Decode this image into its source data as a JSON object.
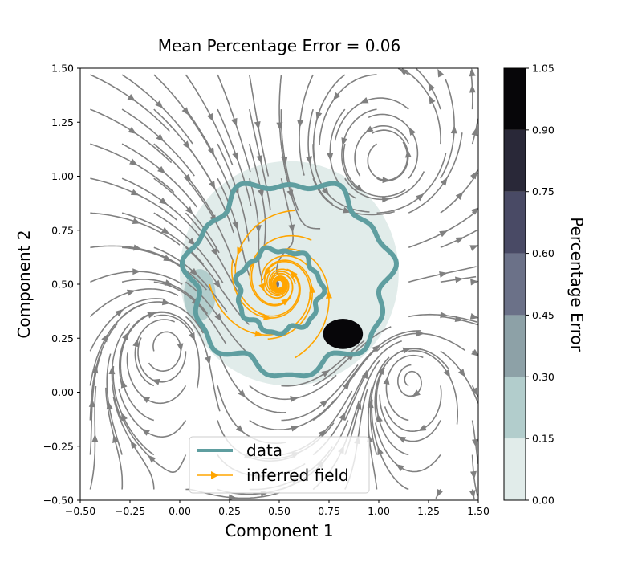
{
  "chart_data": {
    "type": "heatmap",
    "title": "Mean Percentage Error = 0.06",
    "xlabel": "Component 1",
    "ylabel": "Component 2",
    "xlim": [
      -0.5,
      1.5
    ],
    "ylim": [
      -0.5,
      1.5
    ],
    "xticks": [
      "−0.50",
      "−0.25",
      "0.00",
      "0.25",
      "0.50",
      "0.75",
      "1.00",
      "1.25",
      "1.50"
    ],
    "yticks": [
      "−0.50",
      "−0.25",
      "0.00",
      "0.25",
      "0.50",
      "0.75",
      "1.00",
      "1.25",
      "1.50"
    ],
    "grid": false,
    "colorbar": {
      "label": "Percentage Error",
      "ticks": [
        "0.00",
        "0.15",
        "0.30",
        "0.45",
        "0.60",
        "0.75",
        "0.90",
        "1.05"
      ],
      "bins": [
        {
          "from": 0.0,
          "to": 0.15,
          "color": "#e1ecea"
        },
        {
          "from": 0.15,
          "to": 0.3,
          "color": "#b2cdcc"
        },
        {
          "from": 0.3,
          "to": 0.45,
          "color": "#8da1a7"
        },
        {
          "from": 0.45,
          "to": 0.6,
          "color": "#6b7188"
        },
        {
          "from": 0.6,
          "to": 0.75,
          "color": "#494a65"
        },
        {
          "from": 0.75,
          "to": 0.9,
          "color": "#292838"
        },
        {
          "from": 0.9,
          "to": 1.05,
          "color": "#070609"
        }
      ]
    },
    "legend": {
      "placement": "bottom-center",
      "items": [
        {
          "label": "data",
          "color": "#5f9ea0"
        },
        {
          "label": "inferred field",
          "color": "#ffa500"
        }
      ]
    },
    "regions": [
      {
        "name": "low-error-region",
        "bin": "0.00-0.15",
        "center": [
          0.55,
          0.55
        ],
        "approx_radius": [
          0.55,
          0.52
        ]
      },
      {
        "name": "high-error-blob",
        "bin": "0.90-1.05",
        "center": [
          0.82,
          0.27
        ],
        "approx_radius": [
          0.1,
          0.07
        ]
      },
      {
        "name": "medium-error-left",
        "bin": "0.15-0.30",
        "center": [
          0.1,
          0.45
        ],
        "approx_radius": [
          0.08,
          0.12
        ]
      },
      {
        "name": "center-node",
        "bin": "0.45-0.60",
        "center": [
          0.49,
          0.5
        ],
        "approx_radius": [
          0.01,
          0.015
        ]
      }
    ],
    "data_curves": [
      {
        "name": "outer-loop",
        "center": [
          0.55,
          0.53
        ],
        "radius": [
          0.5,
          0.44
        ],
        "color": "#5f9ea0"
      },
      {
        "name": "inner-spiral",
        "center": [
          0.5,
          0.47
        ],
        "radius": [
          0.21,
          0.19
        ],
        "color": "#5f9ea0"
      }
    ],
    "field_colors": {
      "background_field": "#808080",
      "inferred_field": "#ffa500"
    }
  }
}
